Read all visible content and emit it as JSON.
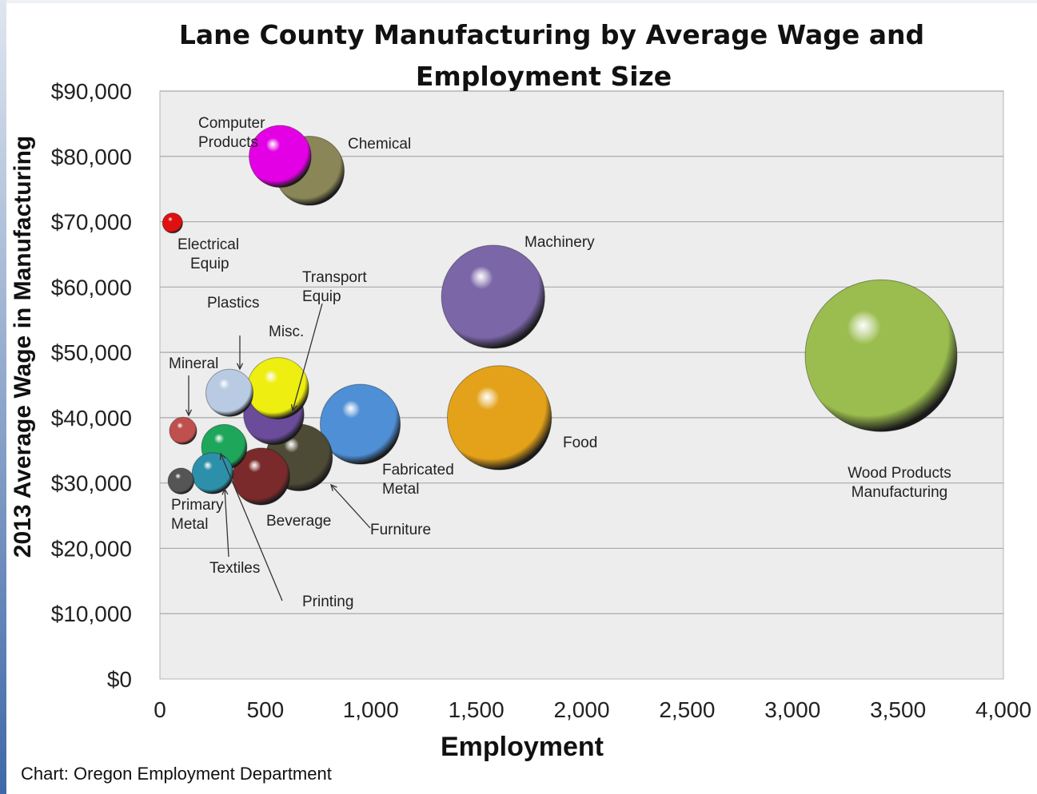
{
  "chart_data": {
    "type": "bubble",
    "title": "Lane County Manufacturing by Average Wage and Employment Size",
    "title_lines": [
      "Lane County Manufacturing by Average Wage and",
      "Employment Size"
    ],
    "xlabel": "Employment",
    "ylabel": "2013 Average Wage in Manufacturing",
    "xlim": [
      0,
      4000
    ],
    "ylim": [
      0,
      90000
    ],
    "x_ticks": [
      "0",
      "500",
      "1,000",
      "1,500",
      "2,000",
      "2,500",
      "3,000",
      "3,500",
      "4,000"
    ],
    "y_ticks": [
      "$0",
      "$10,000",
      "$20,000",
      "$30,000",
      "$40,000",
      "$50,000",
      "$60,000",
      "$70,000",
      "$80,000",
      "$90,000"
    ],
    "grid": "horizontal",
    "series": [
      {
        "key": "wood",
        "label_lines": [
          "Wood Products",
          "Manufacturing"
        ],
        "x": 3420,
        "y": 49500,
        "size": 3420,
        "color": "#9bbd4f"
      },
      {
        "key": "machinery",
        "label_lines": [
          "Machinery"
        ],
        "x": 1580,
        "y": 58500,
        "size": 1580,
        "color": "#7b66a8"
      },
      {
        "key": "food",
        "label_lines": [
          "Food"
        ],
        "x": 1610,
        "y": 40000,
        "size": 1610,
        "color": "#e3a21a"
      },
      {
        "key": "fabricated",
        "label_lines": [
          "Fabricated",
          "Metal"
        ],
        "x": 950,
        "y": 39000,
        "size": 950,
        "color": "#4f8fd6"
      },
      {
        "key": "chemical",
        "label_lines": [
          "Chemical"
        ],
        "x": 710,
        "y": 77800,
        "size": 710,
        "color": "#8a8658"
      },
      {
        "key": "computer",
        "label_lines": [
          "Computer",
          "Products"
        ],
        "x": 570,
        "y": 80000,
        "size": 570,
        "color": "#e400e4"
      },
      {
        "key": "furniture",
        "label_lines": [
          "Furniture"
        ],
        "x": 660,
        "y": 33900,
        "size": 660,
        "color": "#4d4a35"
      },
      {
        "key": "transport",
        "label_lines": [
          "Transport",
          "Equip"
        ],
        "x": 540,
        "y": 40500,
        "size": 540,
        "color": "#6a4c9a"
      },
      {
        "key": "misc",
        "label_lines": [
          "Misc."
        ],
        "x": 560,
        "y": 44500,
        "size": 560,
        "color": "#eeee10"
      },
      {
        "key": "beverage",
        "label_lines": [
          "Beverage"
        ],
        "x": 480,
        "y": 31000,
        "size": 480,
        "color": "#7a2a2a"
      },
      {
        "key": "plastics",
        "label_lines": [
          "Plastics"
        ],
        "x": 330,
        "y": 43800,
        "size": 330,
        "color": "#b9cbe3"
      },
      {
        "key": "printing",
        "label_lines": [
          "Printing"
        ],
        "x": 305,
        "y": 35500,
        "size": 305,
        "color": "#1ea65a"
      },
      {
        "key": "textiles",
        "label_lines": [
          "Textiles"
        ],
        "x": 250,
        "y": 31500,
        "size": 250,
        "color": "#2d90aa"
      },
      {
        "key": "mineral",
        "label_lines": [
          "Mineral"
        ],
        "x": 110,
        "y": 38000,
        "size": 110,
        "color": "#c0504d"
      },
      {
        "key": "primary",
        "label_lines": [
          "Primary",
          "Metal"
        ],
        "x": 100,
        "y": 30300,
        "size": 100,
        "color": "#555555"
      },
      {
        "key": "electrical",
        "label_lines": [
          "Electrical",
          "Equip"
        ],
        "x": 60,
        "y": 69800,
        "size": 60,
        "color": "#e01010"
      }
    ]
  },
  "source": "Chart: Oregon Employment Department"
}
